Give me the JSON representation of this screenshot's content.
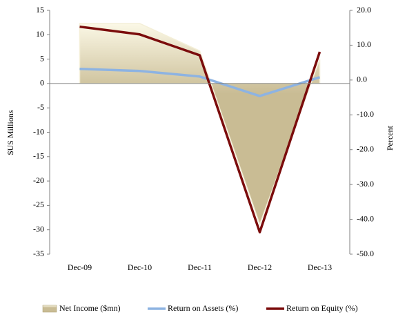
{
  "chart_data": {
    "type": "combo",
    "categories": [
      "Dec-09",
      "Dec-10",
      "Dec-11",
      "Dec-12",
      "Dec-13"
    ],
    "series": [
      {
        "name": "Net Income ($mn)",
        "type": "area",
        "color": "#c9bc94",
        "values": [
          12.3,
          12.3,
          6.7,
          -28.9,
          5.0
        ]
      },
      {
        "name": "Return on Assets (%)",
        "type": "line",
        "axis": "y2",
        "color": "#8db3e2",
        "values": [
          3.2,
          2.6,
          1.0,
          -4.6,
          0.8
        ]
      },
      {
        "name": "Return on Equity (%)",
        "type": "line",
        "axis": "y2",
        "color": "#7b0c0c",
        "values": [
          15.3,
          13.1,
          7.1,
          -43.7,
          8.1
        ]
      }
    ],
    "y_label": "$US Millions",
    "y2_label": "Percent",
    "ylim": [
      -35,
      15
    ],
    "yticks": [
      -35,
      -30,
      -25,
      -20,
      -15,
      -10,
      -5,
      0,
      5,
      10,
      15
    ],
    "y2lim": [
      -50,
      20
    ],
    "y2ticks": [
      {
        "value": -50,
        "label": "-50.0"
      },
      {
        "value": -40,
        "label": "-40.0"
      },
      {
        "value": -30,
        "label": "-30.0"
      },
      {
        "value": -20,
        "label": "-20.0"
      },
      {
        "value": -10,
        "label": "-10.0"
      },
      {
        "value": 0,
        "label": "0.0"
      },
      {
        "value": 10,
        "label": "10.0"
      },
      {
        "value": 20,
        "label": "20.0"
      }
    ],
    "grid": false,
    "legend": "bottom"
  }
}
